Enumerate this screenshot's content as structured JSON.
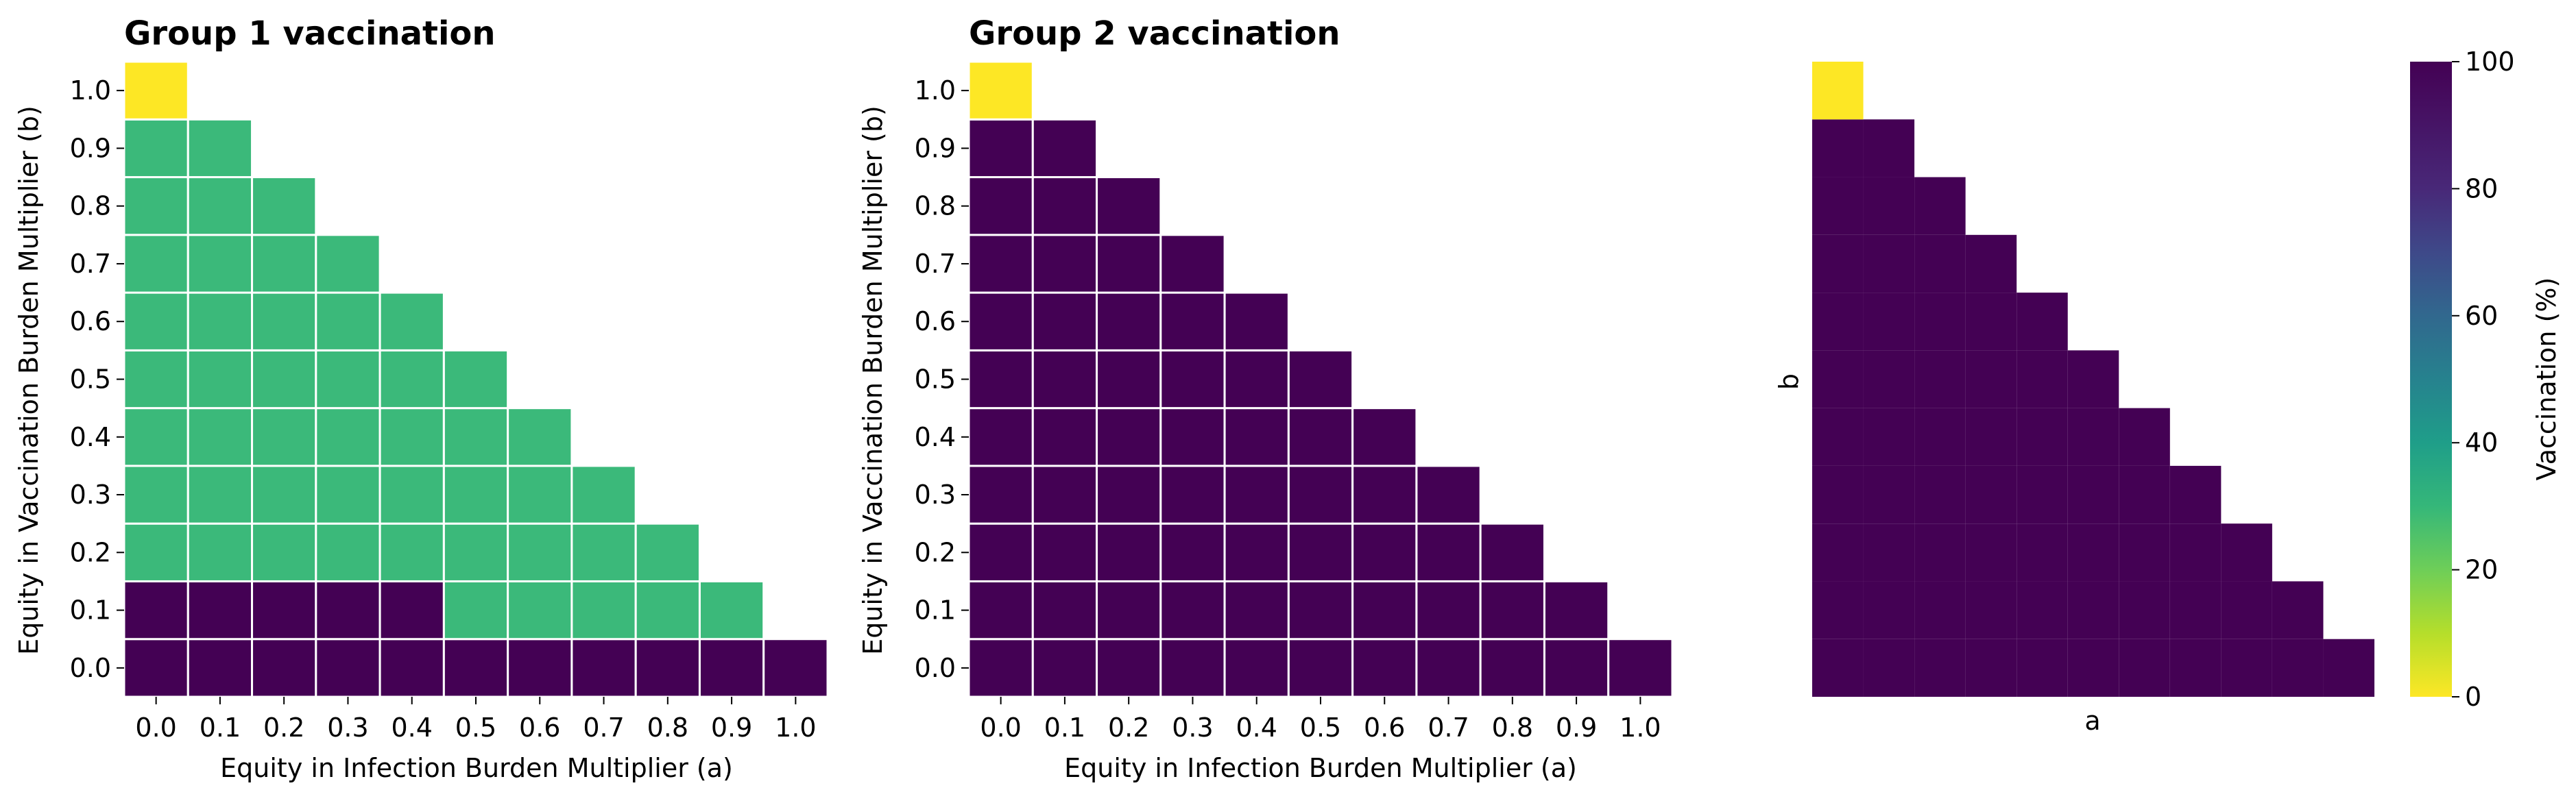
{
  "chart_data": [
    {
      "type": "heatmap",
      "title": "Group 1 vaccination",
      "xlabel": "Equity in Infection Burden Multiplier (a)",
      "ylabel": "Equity in Vaccination Burden Multiplier (b)",
      "x_ticks": [
        "0.0",
        "0.1",
        "0.2",
        "0.3",
        "0.4",
        "0.5",
        "0.6",
        "0.7",
        "0.8",
        "0.9",
        "1.0"
      ],
      "y_ticks": [
        "0.0",
        "0.1",
        "0.2",
        "0.3",
        "0.4",
        "0.5",
        "0.6",
        "0.7",
        "0.8",
        "0.9",
        "1.0"
      ],
      "mask": "upper triangle (a + b > 1) empty",
      "values": [
        [
          100,
          100,
          100,
          100,
          100,
          100,
          100,
          100,
          100,
          100,
          100
        ],
        [
          100,
          100,
          100,
          100,
          100,
          33,
          33,
          33,
          33,
          33,
          null
        ],
        [
          33,
          33,
          33,
          33,
          33,
          33,
          33,
          33,
          33,
          null,
          null
        ],
        [
          33,
          33,
          33,
          33,
          33,
          33,
          33,
          33,
          null,
          null,
          null
        ],
        [
          33,
          33,
          33,
          33,
          33,
          33,
          33,
          null,
          null,
          null,
          null
        ],
        [
          33,
          33,
          33,
          33,
          33,
          33,
          null,
          null,
          null,
          null,
          null
        ],
        [
          33,
          33,
          33,
          33,
          33,
          null,
          null,
          null,
          null,
          null,
          null
        ],
        [
          33,
          33,
          33,
          33,
          null,
          null,
          null,
          null,
          null,
          null,
          null
        ],
        [
          33,
          33,
          33,
          null,
          null,
          null,
          null,
          null,
          null,
          null,
          null
        ],
        [
          33,
          33,
          null,
          null,
          null,
          null,
          null,
          null,
          null,
          null,
          null
        ],
        [
          0,
          null,
          null,
          null,
          null,
          null,
          null,
          null,
          null,
          null,
          null
        ]
      ]
    },
    {
      "type": "heatmap",
      "title": "Group 2 vaccination",
      "xlabel": "Equity in Infection Burden Multiplier (a)",
      "ylabel": "Equity in Vaccination Burden Multiplier (b)",
      "x_ticks": [
        "0.0",
        "0.1",
        "0.2",
        "0.3",
        "0.4",
        "0.5",
        "0.6",
        "0.7",
        "0.8",
        "0.9",
        "1.0"
      ],
      "y_ticks": [
        "0.0",
        "0.1",
        "0.2",
        "0.3",
        "0.4",
        "0.5",
        "0.6",
        "0.7",
        "0.8",
        "0.9",
        "1.0"
      ],
      "mask": "upper triangle (a + b > 1) empty",
      "values": [
        [
          100,
          100,
          100,
          100,
          100,
          100,
          100,
          100,
          100,
          100,
          100
        ],
        [
          100,
          100,
          100,
          100,
          100,
          100,
          100,
          100,
          100,
          100,
          null
        ],
        [
          100,
          100,
          100,
          100,
          100,
          100,
          100,
          100,
          100,
          null,
          null
        ],
        [
          100,
          100,
          100,
          100,
          100,
          100,
          100,
          100,
          null,
          null,
          null
        ],
        [
          100,
          100,
          100,
          100,
          100,
          100,
          100,
          null,
          null,
          null,
          null
        ],
        [
          100,
          100,
          100,
          100,
          100,
          100,
          null,
          null,
          null,
          null,
          null
        ],
        [
          100,
          100,
          100,
          100,
          100,
          null,
          null,
          null,
          null,
          null,
          null
        ],
        [
          100,
          100,
          100,
          100,
          null,
          null,
          null,
          null,
          null,
          null,
          null
        ],
        [
          100,
          100,
          100,
          null,
          null,
          null,
          null,
          null,
          null,
          null,
          null
        ],
        [
          100,
          100,
          null,
          null,
          null,
          null,
          null,
          null,
          null,
          null,
          null
        ],
        [
          0,
          null,
          null,
          null,
          null,
          null,
          null,
          null,
          null,
          null,
          null
        ]
      ]
    },
    {
      "type": "heatmap",
      "title": "",
      "xlabel": "a",
      "ylabel": "b",
      "mask": "upper triangle (a + b > 1) empty",
      "values": [
        [
          100,
          100,
          100,
          100,
          100,
          100,
          100,
          100,
          100,
          100,
          100
        ],
        [
          100,
          100,
          100,
          100,
          100,
          100,
          100,
          100,
          100,
          100,
          null
        ],
        [
          100,
          100,
          100,
          100,
          100,
          100,
          100,
          100,
          100,
          null,
          null
        ],
        [
          100,
          100,
          100,
          100,
          100,
          100,
          100,
          100,
          null,
          null,
          null
        ],
        [
          100,
          100,
          100,
          100,
          100,
          100,
          100,
          null,
          null,
          null,
          null
        ],
        [
          100,
          100,
          100,
          100,
          100,
          100,
          null,
          null,
          null,
          null,
          null
        ],
        [
          100,
          100,
          100,
          100,
          100,
          null,
          null,
          null,
          null,
          null,
          null
        ],
        [
          100,
          100,
          100,
          100,
          null,
          null,
          null,
          null,
          null,
          null,
          null
        ],
        [
          100,
          100,
          100,
          null,
          null,
          null,
          null,
          null,
          null,
          null,
          null
        ],
        [
          100,
          100,
          null,
          null,
          null,
          null,
          null,
          null,
          null,
          null,
          null
        ],
        [
          0,
          null,
          null,
          null,
          null,
          null,
          null,
          null,
          null,
          null,
          null
        ]
      ],
      "colorbar": {
        "label": "Vaccination (%)",
        "range": [
          0,
          100
        ],
        "ticks": [
          "0",
          "20",
          "40",
          "60",
          "80",
          "100"
        ],
        "colormap": "viridis_r"
      }
    }
  ],
  "colors": {
    "zero": "#fde725",
    "one_third": "#3bb97a",
    "hundred": "#440154",
    "cell_border": "#ffffff",
    "text": "#000000"
  }
}
